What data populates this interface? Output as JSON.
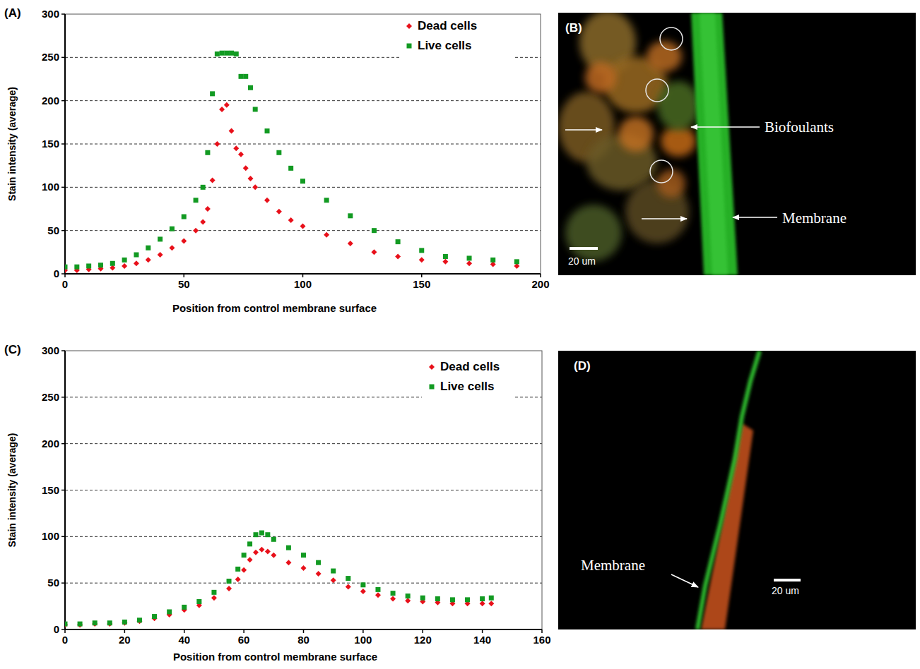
{
  "chart_data": [
    {
      "type": "scatter",
      "panel": "(A)",
      "x_label": "Position from control membrane surface",
      "y_label": "Stain intensity (average)",
      "x": [
        0,
        5,
        10,
        15,
        20,
        25,
        30,
        35,
        40,
        45,
        50,
        55,
        58,
        60,
        62,
        64,
        66,
        68,
        70,
        72,
        74,
        76,
        78,
        80,
        85,
        90,
        95,
        100,
        110,
        120,
        130,
        140,
        150,
        160,
        170,
        180,
        190
      ],
      "xlim": [
        0,
        200
      ],
      "xticks": [
        0,
        50,
        100,
        150,
        200
      ],
      "ylim": [
        0,
        300
      ],
      "yticks": [
        0,
        50,
        100,
        150,
        200,
        250,
        300
      ],
      "grid": true,
      "legend": "top-right",
      "series": [
        {
          "name": "Dead cells",
          "color": "#e8101a",
          "marker": "diamond",
          "values": [
            4,
            4,
            5,
            6,
            7,
            9,
            12,
            16,
            22,
            30,
            38,
            50,
            60,
            75,
            108,
            150,
            190,
            195,
            165,
            145,
            138,
            122,
            110,
            100,
            85,
            72,
            62,
            55,
            45,
            35,
            25,
            20,
            16,
            14,
            12,
            11,
            9
          ]
        },
        {
          "name": "Live cells",
          "color": "#129a22",
          "marker": "square",
          "values": [
            8,
            8,
            9,
            10,
            12,
            16,
            22,
            30,
            40,
            52,
            66,
            85,
            100,
            140,
            208,
            254,
            255,
            255,
            255,
            254,
            228,
            228,
            215,
            190,
            165,
            140,
            122,
            107,
            85,
            67,
            50,
            37,
            27,
            20,
            18,
            16,
            14
          ]
        }
      ]
    },
    {
      "type": "scatter",
      "panel": "(C)",
      "x_label": "Position from control membrane surface",
      "y_label": "Stain intensity (average)",
      "x": [
        0,
        5,
        10,
        15,
        20,
        25,
        30,
        35,
        40,
        45,
        50,
        55,
        58,
        60,
        62,
        64,
        66,
        68,
        70,
        75,
        80,
        85,
        90,
        95,
        100,
        105,
        110,
        115,
        120,
        125,
        130,
        135,
        140,
        143
      ],
      "xlim": [
        0,
        160
      ],
      "xticks": [
        0,
        20,
        40,
        60,
        80,
        100,
        120,
        140,
        160
      ],
      "ylim": [
        0,
        300
      ],
      "yticks": [
        0,
        50,
        100,
        150,
        200,
        250,
        300
      ],
      "grid": true,
      "legend": "top-right",
      "series": [
        {
          "name": "Dead cells",
          "color": "#e8101a",
          "marker": "diamond",
          "values": [
            5,
            5,
            6,
            6,
            7,
            9,
            12,
            16,
            21,
            26,
            34,
            44,
            54,
            64,
            75,
            83,
            86,
            84,
            80,
            72,
            66,
            60,
            53,
            46,
            41,
            37,
            33,
            31,
            30,
            29,
            28,
            28,
            28,
            28
          ]
        },
        {
          "name": "Live cells",
          "color": "#129a22",
          "marker": "square",
          "values": [
            6,
            6,
            7,
            7,
            8,
            10,
            14,
            19,
            24,
            30,
            40,
            52,
            65,
            80,
            92,
            102,
            104,
            102,
            97,
            88,
            80,
            72,
            63,
            55,
            48,
            43,
            39,
            36,
            34,
            33,
            32,
            32,
            33,
            34
          ]
        }
      ]
    }
  ],
  "images": [
    {
      "panel": "(B)",
      "labels": [
        "Biofoulants",
        "Membrane"
      ],
      "scale_bar": "20 um"
    },
    {
      "panel": "(D)",
      "labels": [
        "Membrane"
      ],
      "scale_bar": "20 um"
    }
  ]
}
